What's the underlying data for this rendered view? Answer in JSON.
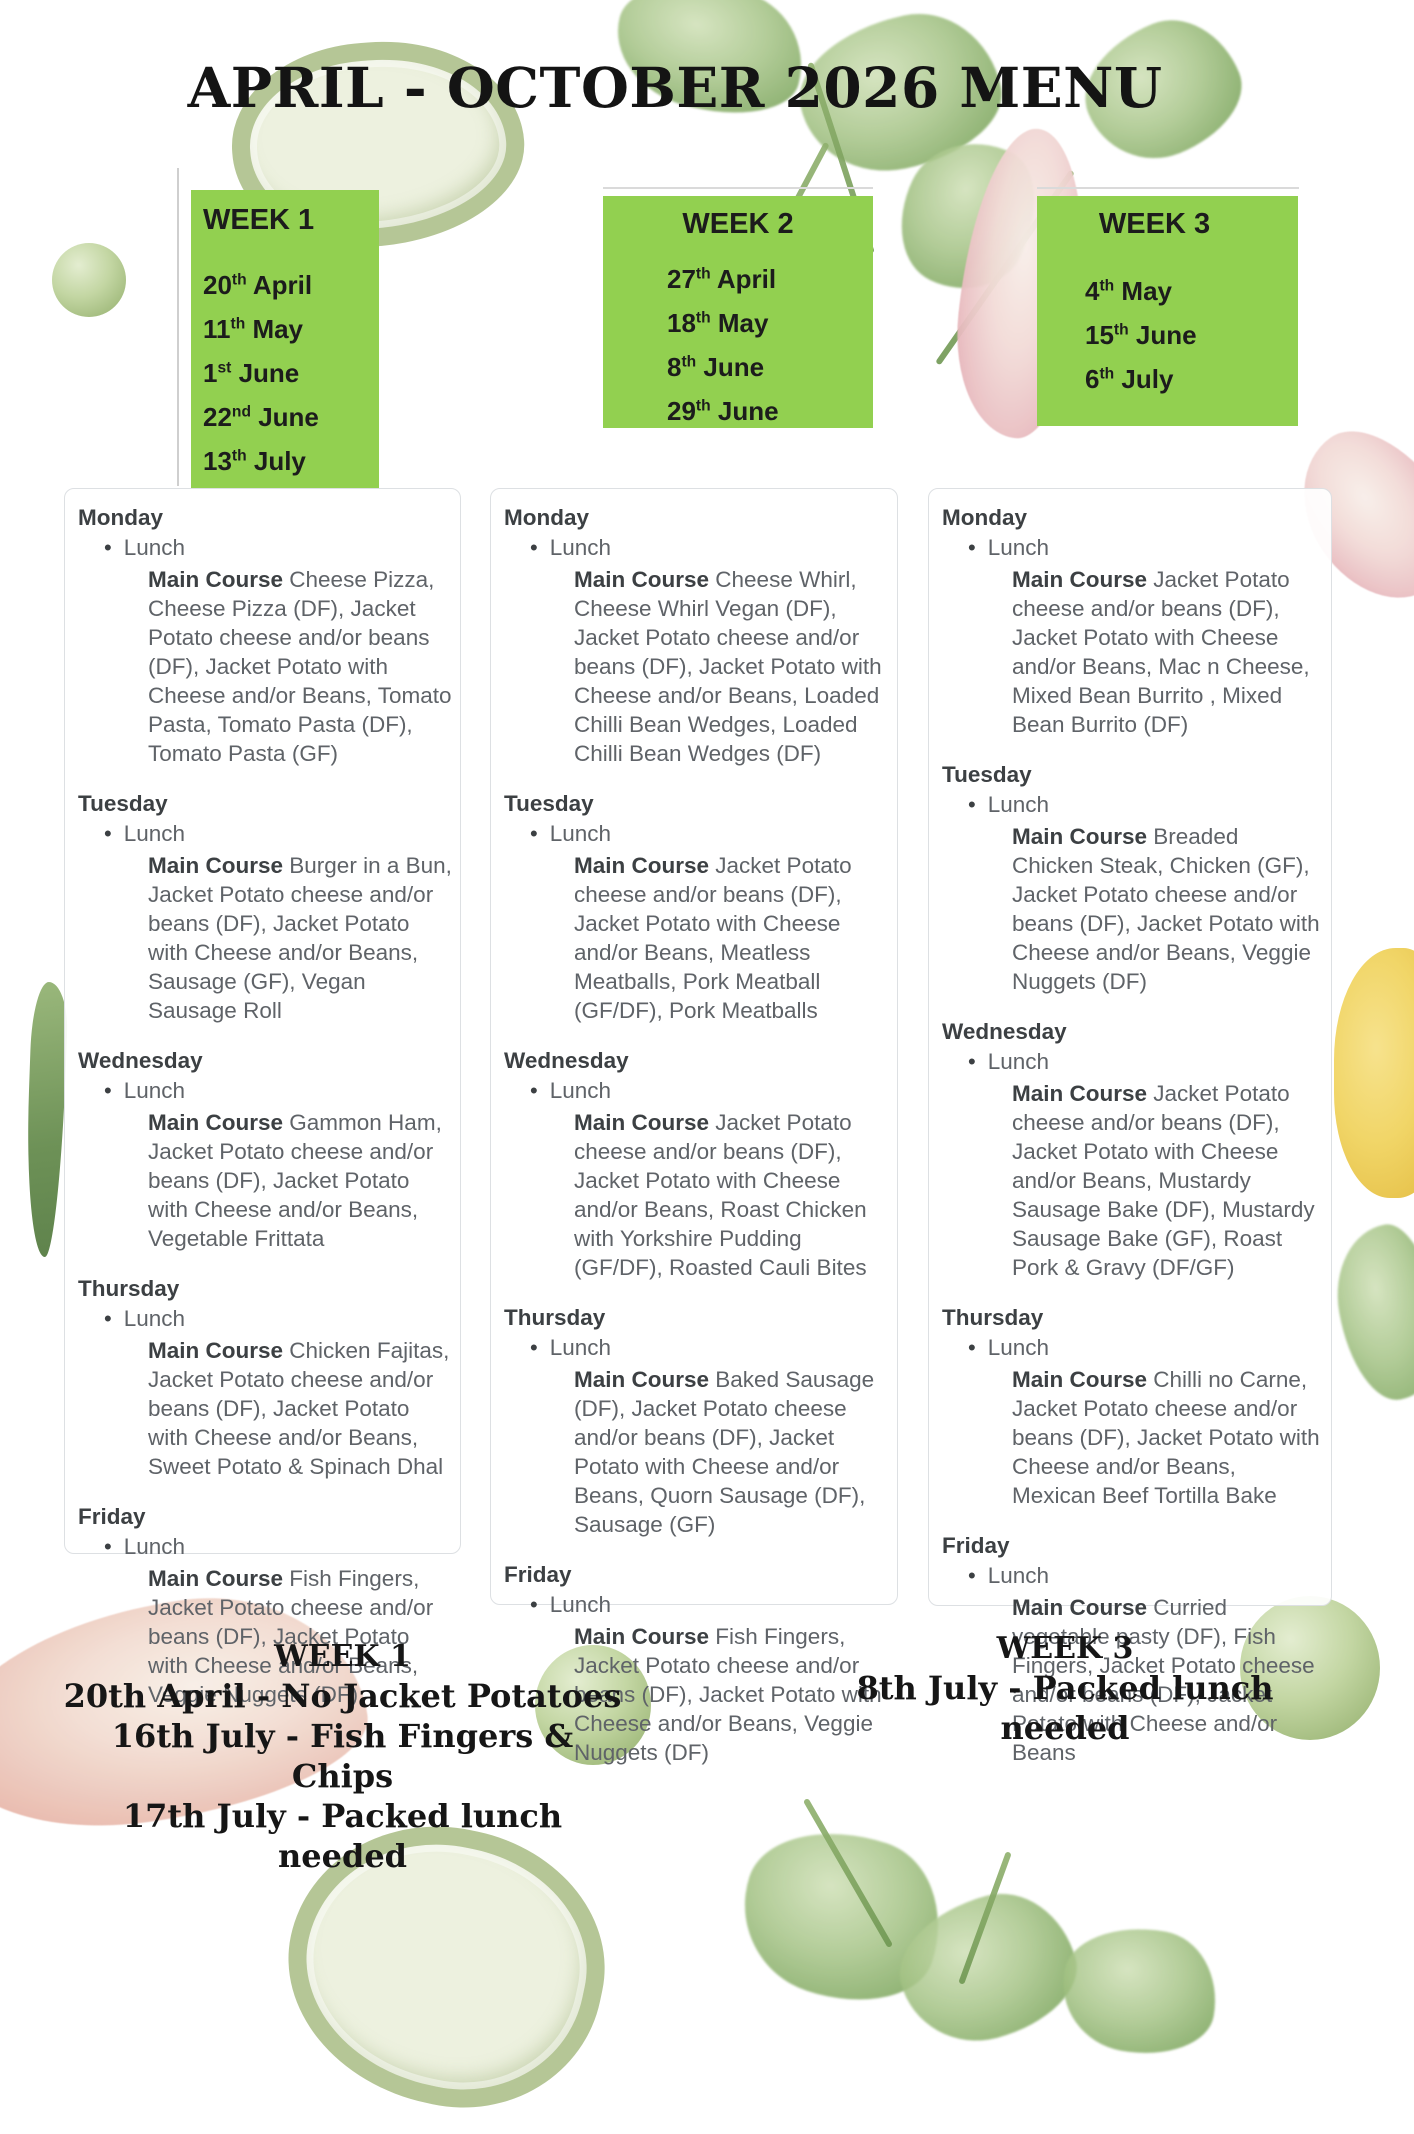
{
  "title": "APRIL - OCTOBER 2026 MENU",
  "colors": {
    "box_green": "#92d050",
    "body_text": "#5f6368",
    "heading_text": "#3c4043"
  },
  "week_boxes": [
    {
      "label": "WEEK 1",
      "dates": [
        {
          "day": "20",
          "ord": "th",
          "month": "April"
        },
        {
          "day": "11",
          "ord": "th",
          "month": "May"
        },
        {
          "day": "1",
          "ord": "st",
          "month": "June"
        },
        {
          "day": "22",
          "ord": "nd",
          "month": "June"
        },
        {
          "day": "13",
          "ord": "th",
          "month": "July"
        }
      ]
    },
    {
      "label": "WEEK 2",
      "dates": [
        {
          "day": "27",
          "ord": "th",
          "month": "April"
        },
        {
          "day": "18",
          "ord": "th",
          "month": "May"
        },
        {
          "day": "8",
          "ord": "th",
          "month": "June"
        },
        {
          "day": "29",
          "ord": "th",
          "month": "June"
        }
      ]
    },
    {
      "label": "WEEK 3",
      "dates": [
        {
          "day": "4",
          "ord": "th",
          "month": "May"
        },
        {
          "day": "15",
          "ord": "th",
          "month": "June"
        },
        {
          "day": "6",
          "ord": "th",
          "month": "July"
        }
      ]
    }
  ],
  "meal_label": "Lunch",
  "course_label": "Main Course",
  "menu_columns": [
    {
      "week": "Week 1",
      "days": [
        {
          "day": "Monday",
          "items": "Cheese Pizza, Cheese Pizza (DF), Jacket Potato cheese and/or beans (DF), Jacket Potato with Cheese and/or Beans, Tomato Pasta, Tomato Pasta (DF), Tomato Pasta (GF)"
        },
        {
          "day": "Tuesday",
          "items": "Burger in a Bun, Jacket Potato cheese and/or beans (DF), Jacket Potato with Cheese and/or Beans, Sausage (GF), Vegan Sausage Roll"
        },
        {
          "day": "Wednesday",
          "items": "Gammon Ham, Jacket Potato cheese and/or beans (DF), Jacket Potato with Cheese and/or Beans, Vegetable Frittata"
        },
        {
          "day": "Thursday",
          "items": "Chicken Fajitas, Jacket Potato cheese and/or beans (DF), Jacket Potato with Cheese and/or Beans, Sweet Potato & Spinach Dhal"
        },
        {
          "day": "Friday",
          "items": "Fish Fingers, Jacket Potato cheese and/or beans (DF), Jacket Potato with Cheese and/or Beans, Veggie Nuggets (DF)"
        }
      ]
    },
    {
      "week": "Week 2",
      "days": [
        {
          "day": "Monday",
          "items": "Cheese Whirl, Cheese Whirl Vegan (DF), Jacket Potato cheese and/or beans (DF), Jacket Potato with Cheese and/or Beans, Loaded Chilli Bean Wedges, Loaded Chilli Bean Wedges (DF)"
        },
        {
          "day": "Tuesday",
          "items": "Jacket Potato cheese and/or beans (DF), Jacket Potato with Cheese and/or Beans, Meatless Meatballs, Pork Meatball (GF/DF), Pork Meatballs"
        },
        {
          "day": "Wednesday",
          "items": "Jacket Potato cheese and/or beans (DF), Jacket Potato with Cheese and/or Beans, Roast Chicken with Yorkshire Pudding (GF/DF), Roasted Cauli Bites"
        },
        {
          "day": "Thursday",
          "items": "Baked Sausage (DF), Jacket Potato cheese and/or beans (DF), Jacket Potato with Cheese and/or Beans, Quorn Sausage (DF), Sausage (GF)"
        },
        {
          "day": "Friday",
          "items": "Fish Fingers, Jacket Potato cheese and/or beans (DF), Jacket Potato with Cheese and/or Beans, Veggie Nuggets (DF)"
        }
      ]
    },
    {
      "week": "Week 3",
      "days": [
        {
          "day": "Monday",
          "items": "Jacket Potato cheese and/or beans (DF), Jacket Potato with Cheese and/or Beans, Mac n Cheese, Mixed Bean Burrito , Mixed Bean Burrito (DF)"
        },
        {
          "day": "Tuesday",
          "items": "Breaded Chicken Steak, Chicken (GF), Jacket Potato cheese and/or beans (DF), Jacket Potato with Cheese and/or Beans, Veggie Nuggets (DF)"
        },
        {
          "day": "Wednesday",
          "items": "Jacket Potato cheese and/or beans (DF), Jacket Potato with Cheese and/or Beans, Mustardy Sausage Bake (DF), Mustardy Sausage Bake (GF), Roast Pork & Gravy (DF/GF)"
        },
        {
          "day": "Thursday",
          "items": "Chilli no Carne, Jacket Potato cheese and/or beans (DF), Jacket Potato with Cheese and/or Beans, Mexican Beef Tortilla Bake"
        },
        {
          "day": "Friday",
          "items": "Curried vegetable pasty (DF), Fish Fingers, Jacket Potato cheese and/or beans (DF), Jacket Potato with Cheese and/or Beans"
        }
      ]
    }
  ],
  "footnotes": [
    {
      "heading": "WEEK 1",
      "lines": [
        "20th April - No Jacket Potatoes",
        "16th July - Fish Fingers & Chips",
        "17th July - Packed lunch needed"
      ]
    },
    {
      "heading": "WEEK 3",
      "lines": [
        "8th July - Packed lunch needed"
      ]
    }
  ],
  "decorations": [
    "cucumber-slice",
    "pea",
    "celery-leaves",
    "garlic-bulb",
    "lemon",
    "parsley-leaves",
    "green-leaf"
  ]
}
